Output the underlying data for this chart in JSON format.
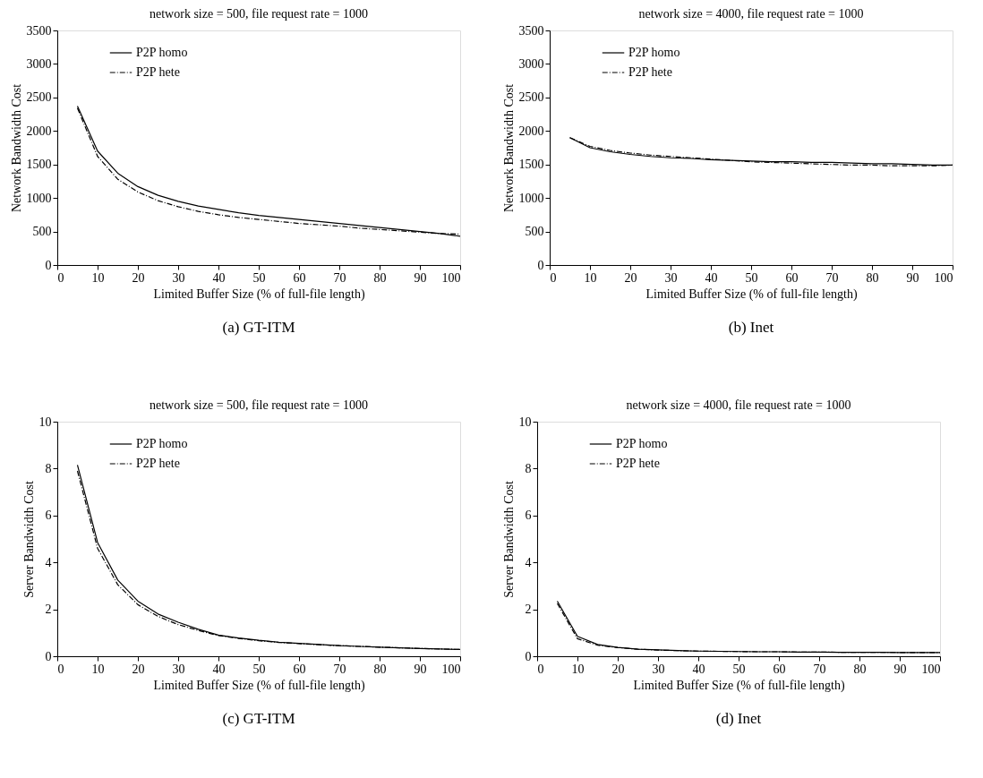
{
  "chart_data": [
    {
      "type": "line",
      "title": "network size = 500, file request rate = 1000",
      "xlabel": "Limited Buffer Size (% of full-file length)",
      "ylabel": "Network Bandwidth Cost",
      "annotations": [
        "(a)  GT-ITM"
      ],
      "x": [
        5,
        10,
        15,
        20,
        25,
        30,
        35,
        40,
        45,
        50,
        55,
        60,
        65,
        70,
        75,
        80,
        85,
        90,
        95,
        100
      ],
      "xlim": [
        0,
        100
      ],
      "xticks": [
        0,
        10,
        20,
        30,
        40,
        50,
        60,
        70,
        80,
        90,
        100
      ],
      "ylim": [
        0,
        3500
      ],
      "yticks": [
        0,
        500,
        1000,
        1500,
        2000,
        2500,
        3000,
        3500
      ],
      "grid": false,
      "legend": "top left",
      "marker": "none",
      "series": [
        {
          "name": "P2P homo",
          "color": "#000000",
          "line_style": "solid",
          "values": [
            2370,
            1700,
            1370,
            1170,
            1040,
            950,
            880,
            830,
            780,
            740,
            710,
            680,
            650,
            620,
            590,
            560,
            530,
            500,
            470,
            430
          ]
        },
        {
          "name": "P2P hete",
          "color": "#000000",
          "line_style": "dashed",
          "values": [
            2340,
            1620,
            1280,
            1090,
            960,
            870,
            800,
            750,
            710,
            680,
            650,
            620,
            600,
            580,
            550,
            530,
            510,
            490,
            470,
            460
          ]
        }
      ]
    },
    {
      "type": "line",
      "title": "network size = 4000, file request rate = 1000",
      "xlabel": "Limited Buffer Size (% of full-file length)",
      "ylabel": "Network Bandwidth Cost",
      "annotations": [
        "(b)  Inet"
      ],
      "x": [
        5,
        10,
        15,
        20,
        25,
        30,
        35,
        40,
        45,
        50,
        55,
        60,
        65,
        70,
        75,
        80,
        85,
        90,
        95,
        100
      ],
      "xlim": [
        0,
        100
      ],
      "xticks": [
        0,
        10,
        20,
        30,
        40,
        50,
        60,
        70,
        80,
        90,
        100
      ],
      "ylim": [
        0,
        3500
      ],
      "yticks": [
        0,
        500,
        1000,
        1500,
        2000,
        2500,
        3000,
        3500
      ],
      "grid": false,
      "legend": "top left",
      "marker": "none",
      "series": [
        {
          "name": "P2P homo",
          "color": "#000000",
          "line_style": "solid",
          "values": [
            1900,
            1750,
            1690,
            1650,
            1620,
            1600,
            1590,
            1570,
            1560,
            1550,
            1540,
            1540,
            1530,
            1530,
            1520,
            1510,
            1510,
            1500,
            1490,
            1490
          ]
        },
        {
          "name": "P2P hete",
          "color": "#000000",
          "line_style": "dashed",
          "values": [
            1900,
            1770,
            1710,
            1670,
            1640,
            1620,
            1600,
            1580,
            1560,
            1540,
            1530,
            1520,
            1510,
            1500,
            1490,
            1490,
            1480,
            1480,
            1480,
            1490
          ]
        }
      ]
    },
    {
      "type": "line",
      "title": "network size = 500, file request rate = 1000",
      "xlabel": "Limited Buffer Size (% of full-file length)",
      "ylabel": "Server Bandwidth Cost",
      "annotations": [
        "(c)  GT-ITM"
      ],
      "x": [
        5,
        10,
        15,
        20,
        25,
        30,
        35,
        40,
        45,
        50,
        55,
        60,
        65,
        70,
        75,
        80,
        85,
        90,
        95,
        100
      ],
      "xlim": [
        0,
        100
      ],
      "xticks": [
        0,
        10,
        20,
        30,
        40,
        50,
        60,
        70,
        80,
        90,
        100
      ],
      "ylim": [
        0,
        10
      ],
      "yticks": [
        0,
        2,
        4,
        6,
        8,
        10
      ],
      "grid": false,
      "legend": "top left",
      "marker": "none",
      "series": [
        {
          "name": "P2P homo",
          "color": "#000000",
          "line_style": "solid",
          "values": [
            8.15,
            4.85,
            3.25,
            2.35,
            1.8,
            1.45,
            1.15,
            0.9,
            0.78,
            0.68,
            0.6,
            0.55,
            0.5,
            0.45,
            0.42,
            0.39,
            0.36,
            0.33,
            0.31,
            0.29
          ]
        },
        {
          "name": "P2P hete",
          "color": "#000000",
          "line_style": "dashed",
          "values": [
            7.9,
            4.6,
            3.05,
            2.2,
            1.7,
            1.35,
            1.1,
            0.88,
            0.76,
            0.66,
            0.59,
            0.54,
            0.49,
            0.45,
            0.42,
            0.39,
            0.36,
            0.33,
            0.31,
            0.29
          ]
        }
      ]
    },
    {
      "type": "line",
      "title": "network size = 4000, file request rate = 1000",
      "xlabel": "Limited Buffer Size (% of full-file length)",
      "ylabel": "Server Bandwidth Cost",
      "annotations": [
        "(d)  Inet"
      ],
      "x": [
        5,
        10,
        15,
        20,
        25,
        30,
        35,
        40,
        45,
        50,
        55,
        60,
        65,
        70,
        75,
        80,
        85,
        90,
        95,
        100
      ],
      "xlim": [
        0,
        100
      ],
      "xticks": [
        0,
        10,
        20,
        30,
        40,
        50,
        60,
        70,
        80,
        90,
        100
      ],
      "ylim": [
        0,
        10
      ],
      "yticks": [
        0,
        2,
        4,
        6,
        8,
        10
      ],
      "grid": false,
      "legend": "top left",
      "marker": "none",
      "series": [
        {
          "name": "P2P homo",
          "color": "#000000",
          "line_style": "solid",
          "values": [
            2.35,
            0.85,
            0.5,
            0.38,
            0.3,
            0.27,
            0.24,
            0.22,
            0.21,
            0.2,
            0.19,
            0.19,
            0.18,
            0.18,
            0.17,
            0.17,
            0.17,
            0.16,
            0.16,
            0.16
          ]
        },
        {
          "name": "P2P hete",
          "color": "#000000",
          "line_style": "dashed",
          "values": [
            2.25,
            0.75,
            0.47,
            0.37,
            0.3,
            0.26,
            0.24,
            0.22,
            0.21,
            0.2,
            0.19,
            0.19,
            0.18,
            0.18,
            0.17,
            0.17,
            0.17,
            0.16,
            0.16,
            0.16
          ]
        }
      ]
    }
  ]
}
